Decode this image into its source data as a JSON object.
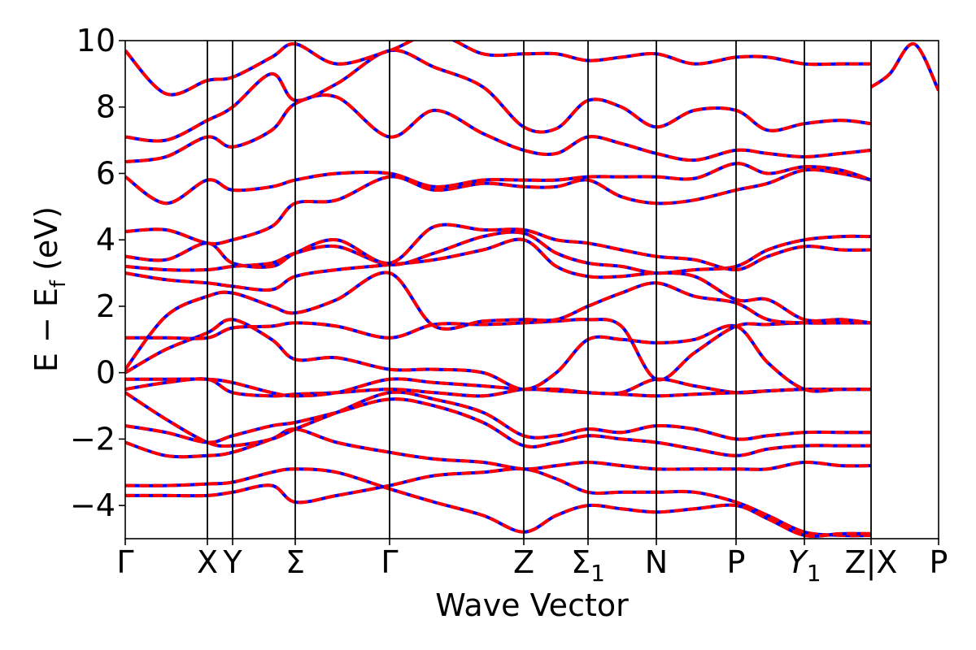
{
  "chart_data": {
    "type": "line",
    "title": "",
    "xlabel": "Wave Vector",
    "ylabel": "E − E_f (eV)",
    "ylabel_parts": {
      "main": "E − E",
      "sub": "f",
      "unit": "(eV)"
    },
    "ylim": [
      -5,
      10
    ],
    "yticks": [
      10,
      8,
      6,
      4,
      2,
      0,
      -2,
      -4
    ],
    "ytick_labels": [
      "10",
      "8",
      "6",
      "4",
      "2",
      "0",
      "−2",
      "−4"
    ],
    "x_range": [
      0,
      10
    ],
    "kpoints": [
      {
        "x": 0.0,
        "label": "Γ"
      },
      {
        "x": 1.01,
        "label": "X"
      },
      {
        "x": 1.32,
        "label": "Y"
      },
      {
        "x": 2.09,
        "label": "Σ"
      },
      {
        "x": 3.25,
        "label": "Γ"
      },
      {
        "x": 4.9,
        "label": "Z"
      },
      {
        "x": 5.69,
        "label": "Σ",
        "sub": "1"
      },
      {
        "x": 6.53,
        "label": "N"
      },
      {
        "x": 7.51,
        "label": "P"
      },
      {
        "x": 8.35,
        "label": "Y",
        "sub": "1",
        "italic": true
      },
      {
        "x": 9.17,
        "label": "Z|X"
      },
      {
        "x": 10.0,
        "label": "P"
      }
    ],
    "grid": false,
    "legend": "none",
    "series_styles": [
      {
        "color": "#0000ff",
        "style": "solid",
        "width": 4
      },
      {
        "color": "#ff0000",
        "style": "dashed",
        "width": 4
      }
    ],
    "bands": [
      {
        "x": [
          0,
          0.5,
          1.01,
          1.32,
          1.8,
          2.09,
          2.6,
          3.25,
          3.8,
          4.4,
          4.9,
          5.3,
          5.69,
          6.1,
          6.53,
          7.0,
          7.51,
          7.9,
          8.35,
          8.8,
          9.17
        ],
        "y": [
          -3.7,
          -3.7,
          -3.7,
          -3.6,
          -3.4,
          -3.9,
          -3.7,
          -3.4,
          -3.1,
          -3.0,
          -2.9,
          -3.2,
          -3.6,
          -3.6,
          -3.6,
          -3.6,
          -3.9,
          -4.3,
          -4.8,
          -4.9,
          -4.9
        ]
      },
      {
        "x": [
          0,
          0.5,
          1.01,
          1.32,
          1.8,
          2.09,
          2.6,
          3.25,
          3.8,
          4.4,
          4.9,
          5.3,
          5.69,
          6.1,
          6.53,
          7.0,
          7.51,
          7.9,
          8.35,
          8.8,
          9.17
        ],
        "y": [
          -3.4,
          -3.4,
          -3.35,
          -3.3,
          -3.0,
          -2.9,
          -3.0,
          -3.5,
          -3.9,
          -4.3,
          -4.8,
          -4.3,
          -4.0,
          -4.1,
          -4.2,
          -4.1,
          -4.0,
          -4.4,
          -4.9,
          -4.85,
          -4.85
        ]
      },
      {
        "x": [
          0,
          0.5,
          1.01,
          1.32,
          1.8,
          2.09,
          2.6,
          3.25,
          3.8,
          4.4,
          4.9,
          5.3,
          5.69,
          6.1,
          6.53,
          7.0,
          7.51,
          7.9,
          8.35,
          8.8,
          9.17
        ],
        "y": [
          -2.1,
          -2.5,
          -2.5,
          -2.4,
          -2.0,
          -1.7,
          -2.1,
          -2.4,
          -2.6,
          -2.7,
          -2.9,
          -2.8,
          -2.7,
          -2.8,
          -2.9,
          -2.9,
          -2.9,
          -2.9,
          -2.7,
          -2.8,
          -2.8
        ]
      },
      {
        "x": [
          0,
          0.5,
          1.01,
          1.32,
          1.8,
          2.09,
          2.6,
          3.25,
          3.8,
          4.4,
          4.9,
          5.3,
          5.69,
          6.1,
          6.53,
          7.0,
          7.51,
          7.9,
          8.35,
          8.8,
          9.17
        ],
        "y": [
          -1.6,
          -1.8,
          -2.1,
          -1.9,
          -1.6,
          -1.5,
          -1.2,
          -0.8,
          -1.0,
          -1.5,
          -2.2,
          -2.1,
          -1.9,
          -2.0,
          -2.1,
          -2.3,
          -2.5,
          -2.3,
          -2.2,
          -2.2,
          -2.2
        ]
      },
      {
        "x": [
          0,
          0.5,
          1.01,
          1.32,
          1.8,
          2.09,
          2.6,
          3.25,
          3.8,
          4.4,
          4.9,
          5.3,
          5.69,
          6.1,
          6.53,
          7.0,
          7.51,
          7.9,
          8.35,
          8.8,
          9.17
        ],
        "y": [
          -0.6,
          -1.4,
          -2.1,
          -2.2,
          -2.0,
          -1.7,
          -1.2,
          -0.6,
          -0.8,
          -1.2,
          -1.9,
          -1.9,
          -1.7,
          -1.8,
          -1.6,
          -1.7,
          -2.0,
          -1.9,
          -1.8,
          -1.8,
          -1.8
        ]
      },
      {
        "x": [
          0,
          0.5,
          1.01,
          1.32,
          1.8,
          2.09,
          2.6,
          3.25,
          3.8,
          4.4,
          4.9,
          5.3,
          5.69,
          6.1,
          6.53,
          7.0,
          7.51,
          7.9,
          8.35,
          8.8,
          9.17
        ],
        "y": [
          -0.5,
          -0.3,
          -0.2,
          -0.6,
          -0.7,
          -0.65,
          -0.6,
          -0.5,
          -0.6,
          -0.7,
          -0.5,
          -0.55,
          -0.6,
          -0.6,
          -0.2,
          -0.4,
          -0.6,
          -0.55,
          -0.5,
          -0.5,
          -0.5
        ]
      },
      {
        "x": [
          0,
          0.5,
          1.01,
          1.32,
          1.8,
          2.09,
          2.6,
          3.25,
          3.8,
          4.4,
          4.9,
          5.3,
          5.69,
          6.1,
          6.53,
          7.0,
          7.51,
          7.9,
          8.35,
          8.8,
          9.17
        ],
        "y": [
          -0.2,
          -0.2,
          -0.2,
          -0.3,
          -0.6,
          -0.7,
          -0.6,
          -0.2,
          -0.3,
          -0.4,
          -0.5,
          -0.5,
          -0.6,
          -0.65,
          -0.7,
          -0.65,
          -0.6,
          -0.55,
          -0.5,
          -0.5,
          -0.5
        ]
      },
      {
        "x": [
          0,
          0.5,
          1.01,
          1.32,
          1.8,
          2.09,
          2.6,
          3.25,
          3.8,
          4.4,
          4.9,
          5.3,
          5.69,
          6.1,
          6.53,
          7.0,
          7.51,
          7.9,
          8.35,
          8.8,
          9.17
        ],
        "y": [
          0.0,
          0.7,
          1.2,
          1.6,
          1.0,
          0.4,
          0.45,
          0.1,
          0.1,
          0.0,
          -0.5,
          0.0,
          1.0,
          1.0,
          0.9,
          1.0,
          1.4,
          0.3,
          -0.5,
          -0.5,
          -0.5
        ]
      },
      {
        "x": [
          0,
          0.5,
          1.01,
          1.32,
          1.8,
          2.09,
          2.6,
          3.25,
          3.8,
          4.4,
          4.9,
          5.3,
          5.69,
          6.1,
          6.53,
          7.0,
          7.51,
          7.9,
          8.35,
          8.8,
          9.17
        ],
        "y": [
          1.05,
          1.05,
          1.05,
          1.35,
          1.4,
          1.5,
          1.4,
          1.05,
          1.45,
          1.45,
          1.5,
          1.55,
          1.6,
          1.4,
          -0.2,
          0.6,
          1.4,
          1.45,
          1.5,
          1.5,
          1.5
        ]
      },
      {
        "x": [
          0,
          0.5,
          1.01,
          1.32,
          1.8,
          2.09,
          2.6,
          3.25,
          3.8,
          4.4,
          4.9,
          5.3,
          5.69,
          6.1,
          6.53,
          7.0,
          7.51,
          7.9,
          8.35,
          8.8,
          9.17
        ],
        "y": [
          0.1,
          1.7,
          2.3,
          2.4,
          2.0,
          1.8,
          2.2,
          3.0,
          1.4,
          1.55,
          1.6,
          1.6,
          2.0,
          2.4,
          2.7,
          2.3,
          2.1,
          1.6,
          1.5,
          1.5,
          1.5
        ]
      },
      {
        "x": [
          0,
          0.5,
          1.01,
          1.32,
          1.8,
          2.09,
          2.6,
          3.25,
          3.8,
          4.4,
          4.9,
          5.3,
          5.69,
          6.1,
          6.53,
          7.0,
          7.51,
          7.9,
          8.35,
          8.8,
          9.17
        ],
        "y": [
          3.0,
          2.8,
          2.7,
          2.6,
          2.5,
          2.9,
          3.1,
          3.25,
          3.4,
          3.7,
          4.0,
          3.2,
          2.9,
          2.9,
          3.0,
          2.9,
          2.2,
          2.2,
          1.6,
          1.6,
          1.5
        ]
      },
      {
        "x": [
          0,
          0.5,
          1.01,
          1.32,
          1.8,
          2.09,
          2.6,
          3.25,
          3.8,
          4.4,
          4.9,
          5.3,
          5.69,
          6.1,
          6.53,
          7.0,
          7.51,
          7.9,
          8.35,
          8.8,
          9.17
        ],
        "y": [
          3.2,
          3.1,
          3.1,
          3.2,
          3.3,
          3.6,
          3.8,
          3.25,
          3.6,
          4.1,
          4.2,
          3.6,
          3.3,
          3.2,
          3.0,
          3.1,
          3.2,
          3.7,
          4.0,
          4.1,
          4.1
        ]
      },
      {
        "x": [
          0,
          0.5,
          1.01,
          1.32,
          1.8,
          2.09,
          2.6,
          3.25,
          3.8,
          4.4,
          4.9,
          5.3,
          5.69,
          6.1,
          6.53,
          7.0,
          7.51,
          7.9,
          8.35,
          8.8,
          9.17
        ],
        "y": [
          3.5,
          3.4,
          3.9,
          3.3,
          3.2,
          3.6,
          4.0,
          3.3,
          4.4,
          4.3,
          4.3,
          4.0,
          3.9,
          3.7,
          3.5,
          3.4,
          3.1,
          3.5,
          3.8,
          3.7,
          3.7
        ]
      },
      {
        "x": [
          0,
          0.5,
          1.01,
          1.32,
          1.8,
          2.09,
          2.6,
          3.25,
          3.8,
          4.4,
          4.9,
          5.3,
          5.69,
          6.1,
          6.53,
          7.0,
          7.51,
          7.9,
          8.35,
          8.8,
          9.17
        ],
        "y": [
          4.25,
          4.3,
          3.9,
          4.0,
          4.4,
          5.1,
          5.2,
          5.9,
          5.5,
          5.7,
          5.6,
          5.6,
          5.8,
          5.3,
          5.1,
          5.2,
          5.5,
          5.7,
          6.1,
          6.0,
          5.8
        ]
      },
      {
        "x": [
          0,
          0.5,
          1.01,
          1.32,
          1.8,
          2.09,
          2.6,
          3.25,
          3.8,
          4.4,
          4.9,
          5.3,
          5.69,
          6.1,
          6.53,
          7.0,
          7.51,
          7.9,
          8.35,
          8.8,
          9.17
        ],
        "y": [
          5.9,
          5.1,
          5.8,
          5.5,
          5.6,
          5.8,
          6.0,
          6.0,
          5.6,
          5.8,
          5.8,
          5.8,
          5.9,
          5.9,
          5.9,
          5.85,
          6.3,
          6.0,
          6.2,
          6.1,
          5.8
        ]
      },
      {
        "x": [
          0,
          0.5,
          1.01,
          1.32,
          1.8,
          2.09,
          2.6,
          3.25,
          3.8,
          4.4,
          4.9,
          5.3,
          5.69,
          6.1,
          6.53,
          7.0,
          7.51,
          7.9,
          8.35,
          8.8,
          9.17
        ],
        "y": [
          6.35,
          6.5,
          7.1,
          6.8,
          7.3,
          8.1,
          8.3,
          7.1,
          7.9,
          7.2,
          6.7,
          6.6,
          7.1,
          6.9,
          6.6,
          6.4,
          6.7,
          6.6,
          6.5,
          6.6,
          6.7
        ]
      },
      {
        "x": [
          0,
          0.5,
          1.01,
          1.32,
          1.8,
          2.09,
          2.6,
          3.25,
          3.8,
          4.4,
          4.9,
          5.3,
          5.69,
          6.1,
          6.53,
          7.0,
          7.51,
          7.9,
          8.35,
          8.8,
          9.17
        ],
        "y": [
          7.1,
          7.0,
          7.6,
          8.0,
          9.0,
          8.2,
          8.7,
          9.7,
          9.2,
          8.6,
          7.4,
          7.35,
          8.2,
          8.0,
          7.4,
          7.9,
          7.9,
          7.3,
          7.5,
          7.6,
          7.5
        ]
      },
      {
        "x": [
          0,
          0.5,
          1.01,
          1.32,
          1.8,
          2.09,
          2.6,
          3.25,
          3.8,
          4.4,
          4.9,
          5.3,
          5.69,
          6.1,
          6.53,
          7.0,
          7.51,
          7.9,
          8.35,
          8.8,
          9.17
        ],
        "y": [
          9.7,
          8.4,
          8.8,
          8.9,
          9.5,
          9.9,
          9.3,
          9.7,
          10.2,
          9.6,
          9.6,
          9.6,
          9.4,
          9.5,
          9.6,
          9.3,
          9.5,
          9.5,
          9.3,
          9.3,
          9.3
        ]
      }
    ]
  }
}
